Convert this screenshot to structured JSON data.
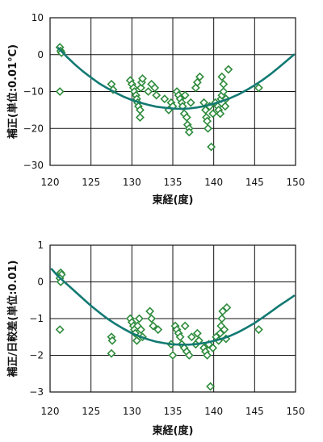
{
  "colors": {
    "marker": "#2e8b3c",
    "curve": "#137a73",
    "grid": "#111111",
    "text": "#111111"
  },
  "chart_data": [
    {
      "type": "scatter",
      "xlabel": "東経(度)",
      "ylabel": "補正(単位:0.01°C)",
      "xlim": [
        120,
        150
      ],
      "ylim": [
        -30,
        10
      ],
      "x_ticks": [
        "120",
        "125",
        "130",
        "135",
        "140",
        "145",
        "150"
      ],
      "y_ticks": [
        "10",
        "0",
        "−10",
        "−20",
        "−30"
      ],
      "x_tick_values": [
        120,
        125,
        130,
        135,
        140,
        145,
        150
      ],
      "y_tick_values": [
        10,
        0,
        -10,
        -20,
        -30
      ],
      "marker": "diamond",
      "grid": true,
      "points": [
        [
          121.2,
          2
        ],
        [
          121.3,
          1
        ],
        [
          121.4,
          0.5
        ],
        [
          121.2,
          -10
        ],
        [
          127.5,
          -8
        ],
        [
          127.7,
          -9.5
        ],
        [
          129.8,
          -7
        ],
        [
          130.0,
          -8
        ],
        [
          130.2,
          -9
        ],
        [
          130.3,
          -10
        ],
        [
          130.5,
          -11
        ],
        [
          130.6,
          -12
        ],
        [
          130.7,
          -13
        ],
        [
          130.8,
          -14
        ],
        [
          131.0,
          -15
        ],
        [
          131.0,
          -17
        ],
        [
          131.1,
          -9
        ],
        [
          131.2,
          -7.5
        ],
        [
          131.3,
          -6.5
        ],
        [
          132.0,
          -10
        ],
        [
          132.4,
          -8
        ],
        [
          132.8,
          -9
        ],
        [
          133.0,
          -11
        ],
        [
          134.0,
          -12
        ],
        [
          134.5,
          -15
        ],
        [
          134.8,
          -13
        ],
        [
          135.0,
          -14
        ],
        [
          135.5,
          -10
        ],
        [
          135.7,
          -11
        ],
        [
          135.9,
          -12
        ],
        [
          136.1,
          -13
        ],
        [
          136.2,
          -14
        ],
        [
          136.4,
          -16
        ],
        [
          136.5,
          -11
        ],
        [
          136.7,
          -17
        ],
        [
          136.8,
          -19
        ],
        [
          137.0,
          -20
        ],
        [
          137.0,
          -21
        ],
        [
          137.2,
          -13
        ],
        [
          137.8,
          -9
        ],
        [
          138.0,
          -7.5
        ],
        [
          138.3,
          -6
        ],
        [
          138.8,
          -13
        ],
        [
          139.0,
          -15
        ],
        [
          139.1,
          -17
        ],
        [
          139.2,
          -18
        ],
        [
          139.3,
          -20
        ],
        [
          139.5,
          -14
        ],
        [
          139.7,
          -25
        ],
        [
          139.9,
          -16
        ],
        [
          140.2,
          -13
        ],
        [
          140.5,
          -14
        ],
        [
          140.6,
          -15
        ],
        [
          140.8,
          -16
        ],
        [
          140.9,
          -12
        ],
        [
          141.0,
          -11
        ],
        [
          141.0,
          -6
        ],
        [
          141.2,
          -8
        ],
        [
          141.2,
          -10
        ],
        [
          141.4,
          -14
        ],
        [
          141.5,
          -12
        ],
        [
          141.8,
          -4
        ],
        [
          145.5,
          -9
        ]
      ],
      "fit_curve": [
        [
          121,
          1.8
        ],
        [
          122,
          -0.5
        ],
        [
          123,
          -2.6
        ],
        [
          124,
          -4.5
        ],
        [
          125,
          -6.2
        ],
        [
          126,
          -7.8
        ],
        [
          127,
          -9.1
        ],
        [
          128,
          -10.3
        ],
        [
          129,
          -11.4
        ],
        [
          130,
          -12.3
        ],
        [
          131,
          -13.0
        ],
        [
          132,
          -13.6
        ],
        [
          133,
          -14.1
        ],
        [
          134,
          -14.4
        ],
        [
          135,
          -14.6
        ],
        [
          136,
          -14.7
        ],
        [
          137,
          -14.6
        ],
        [
          138,
          -14.3
        ],
        [
          139,
          -13.9
        ],
        [
          140,
          -13.3
        ],
        [
          141,
          -12.6
        ],
        [
          142,
          -11.8
        ],
        [
          143,
          -10.8
        ],
        [
          144,
          -9.6
        ],
        [
          145,
          -8.3
        ],
        [
          146,
          -6.8
        ],
        [
          147,
          -5.2
        ],
        [
          148,
          -3.4
        ],
        [
          149,
          -1.5
        ],
        [
          149.8,
          0
        ]
      ]
    },
    {
      "type": "scatter",
      "xlabel": "東経(度)",
      "ylabel": "補正/日較差(単位:0.01)",
      "xlim": [
        120,
        150
      ],
      "ylim": [
        -3,
        1
      ],
      "x_ticks": [
        "120",
        "125",
        "130",
        "135",
        "140",
        "145",
        "150"
      ],
      "y_ticks": [
        "1",
        "0",
        "−1",
        "−2",
        "−3"
      ],
      "x_tick_values": [
        120,
        125,
        130,
        135,
        140,
        145,
        150
      ],
      "y_tick_values": [
        1,
        0,
        -1,
        -2,
        -3
      ],
      "marker": "diamond",
      "grid": true,
      "points": [
        [
          121.3,
          0.25
        ],
        [
          121.4,
          0.2
        ],
        [
          121.2,
          0.1
        ],
        [
          121.3,
          0.0
        ],
        [
          121.2,
          -1.3
        ],
        [
          127.5,
          -1.5
        ],
        [
          127.6,
          -1.6
        ],
        [
          127.5,
          -1.95
        ],
        [
          129.8,
          -1.0
        ],
        [
          130.0,
          -1.1
        ],
        [
          130.2,
          -1.2
        ],
        [
          130.3,
          -1.3
        ],
        [
          130.4,
          -1.4
        ],
        [
          130.6,
          -1.6
        ],
        [
          130.7,
          -1.2
        ],
        [
          130.9,
          -1.0
        ],
        [
          131.1,
          -1.3
        ],
        [
          131.3,
          -1.5
        ],
        [
          132.2,
          -0.8
        ],
        [
          132.4,
          -1.0
        ],
        [
          132.6,
          -1.2
        ],
        [
          133.2,
          -1.3
        ],
        [
          134.8,
          -1.7
        ],
        [
          135.0,
          -2.0
        ],
        [
          135.3,
          -1.2
        ],
        [
          135.5,
          -1.3
        ],
        [
          135.7,
          -1.4
        ],
        [
          135.9,
          -1.5
        ],
        [
          136.1,
          -1.7
        ],
        [
          136.4,
          -1.8
        ],
        [
          136.5,
          -1.2
        ],
        [
          136.7,
          -1.9
        ],
        [
          137.0,
          -2.0
        ],
        [
          137.3,
          -1.5
        ],
        [
          137.8,
          -1.7
        ],
        [
          138.0,
          -1.4
        ],
        [
          138.2,
          -1.6
        ],
        [
          138.8,
          -1.8
        ],
        [
          139.0,
          -1.9
        ],
        [
          139.2,
          -2.0
        ],
        [
          139.4,
          -1.7
        ],
        [
          139.6,
          -2.85
        ],
        [
          139.9,
          -1.8
        ],
        [
          140.3,
          -1.5
        ],
        [
          140.6,
          -1.6
        ],
        [
          140.8,
          -1.4
        ],
        [
          140.9,
          -1.2
        ],
        [
          141.0,
          -1.0
        ],
        [
          141.1,
          -0.8
        ],
        [
          141.3,
          -1.3
        ],
        [
          141.5,
          -1.55
        ],
        [
          141.6,
          -0.7
        ],
        [
          145.5,
          -1.3
        ]
      ],
      "fit_curve": [
        [
          120.2,
          0.35
        ],
        [
          121,
          0.15
        ],
        [
          122,
          -0.05
        ],
        [
          123,
          -0.25
        ],
        [
          124,
          -0.45
        ],
        [
          125,
          -0.65
        ],
        [
          126,
          -0.83
        ],
        [
          127,
          -1.0
        ],
        [
          128,
          -1.15
        ],
        [
          129,
          -1.28
        ],
        [
          130,
          -1.4
        ],
        [
          131,
          -1.49
        ],
        [
          132,
          -1.57
        ],
        [
          133,
          -1.63
        ],
        [
          134,
          -1.67
        ],
        [
          135,
          -1.7
        ],
        [
          136,
          -1.71
        ],
        [
          137,
          -1.71
        ],
        [
          138,
          -1.69
        ],
        [
          139,
          -1.66
        ],
        [
          140,
          -1.61
        ],
        [
          141,
          -1.55
        ],
        [
          142,
          -1.47
        ],
        [
          143,
          -1.37
        ],
        [
          144,
          -1.25
        ],
        [
          145,
          -1.12
        ],
        [
          146,
          -0.97
        ],
        [
          147,
          -0.81
        ],
        [
          148,
          -0.65
        ],
        [
          149,
          -0.5
        ],
        [
          149.8,
          -0.38
        ]
      ]
    }
  ]
}
